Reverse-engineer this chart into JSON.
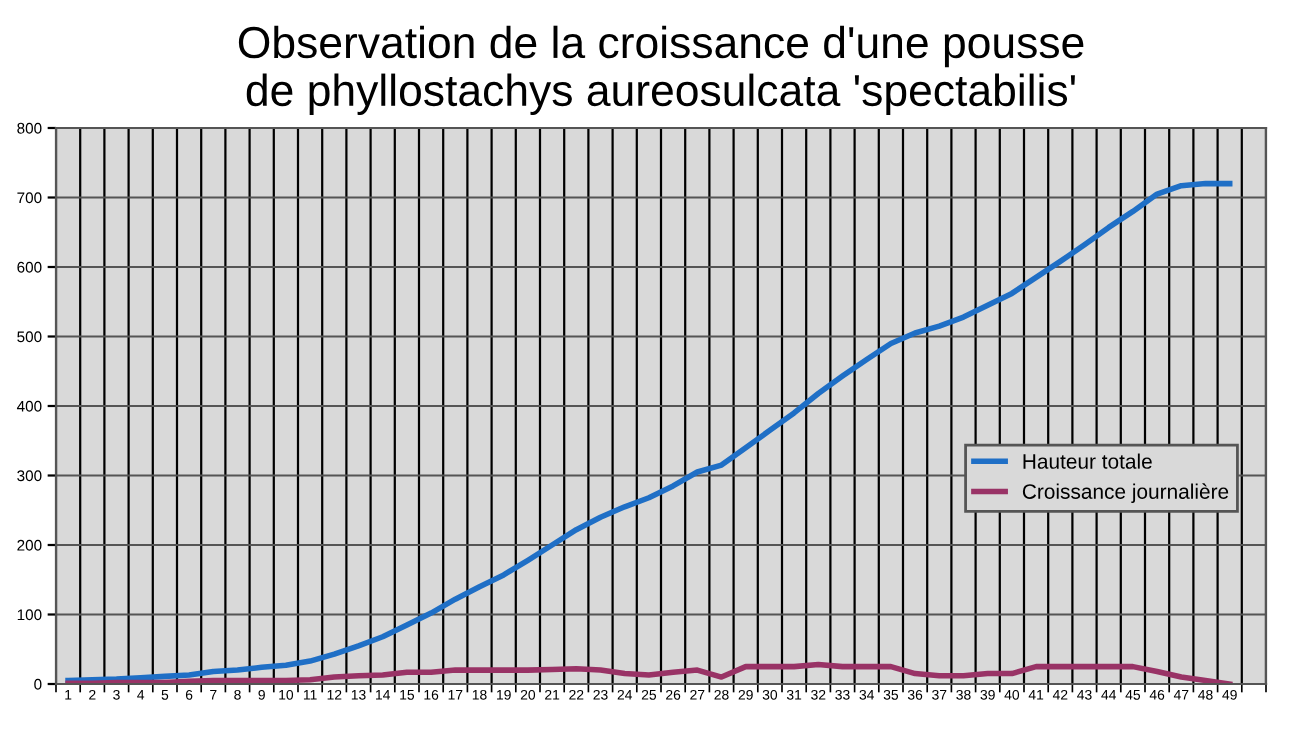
{
  "chart_data": {
    "type": "line",
    "title": "Observation de la croissance d'une pousse\nde phyllostachys aureosulcata 'spectabilis'",
    "categories": [
      "1",
      "2",
      "3",
      "4",
      "5",
      "6",
      "7",
      "8",
      "9",
      "10",
      "11",
      "12",
      "13",
      "14",
      "15",
      "16",
      "17",
      "18",
      "19",
      "20",
      "21",
      "22",
      "23",
      "24",
      "25",
      "26",
      "27",
      "28",
      "29",
      "30",
      "31",
      "32",
      "33",
      "34",
      "35",
      "36",
      "37",
      "38",
      "39",
      "40",
      "41",
      "42",
      "43",
      "44",
      "45",
      "46",
      "47",
      "48",
      "49",
      null
    ],
    "series": [
      {
        "name": "Hauteur totale",
        "color": "#1f6fc6",
        "values": [
          5,
          6,
          7,
          9,
          11,
          13,
          18,
          20,
          24,
          27,
          33,
          43,
          55,
          68,
          85,
          102,
          122,
          140,
          157,
          178,
          200,
          222,
          240,
          255,
          268,
          285,
          305,
          315,
          340,
          365,
          390,
          418,
          443,
          467,
          490,
          505,
          515,
          528,
          545,
          562,
          585,
          608,
          632,
          657,
          680,
          705,
          717,
          720,
          720,
          null
        ]
      },
      {
        "name": "Croissance journalière",
        "color": "#993366",
        "values": [
          1,
          1,
          2,
          2,
          2,
          4,
          5,
          5,
          5,
          5,
          6,
          10,
          12,
          13,
          17,
          17,
          20,
          20,
          20,
          20,
          21,
          22,
          20,
          15,
          13,
          17,
          20,
          10,
          25,
          25,
          25,
          28,
          25,
          25,
          25,
          15,
          12,
          12,
          15,
          15,
          25,
          25,
          25,
          25,
          25,
          18,
          10,
          5,
          0,
          null
        ]
      }
    ],
    "ylim": [
      0,
      800
    ],
    "yticks": [
      0,
      100,
      200,
      300,
      400,
      500,
      600,
      700,
      800
    ],
    "grid": true,
    "legend": "right",
    "marker": "none",
    "line_style": "solid"
  }
}
